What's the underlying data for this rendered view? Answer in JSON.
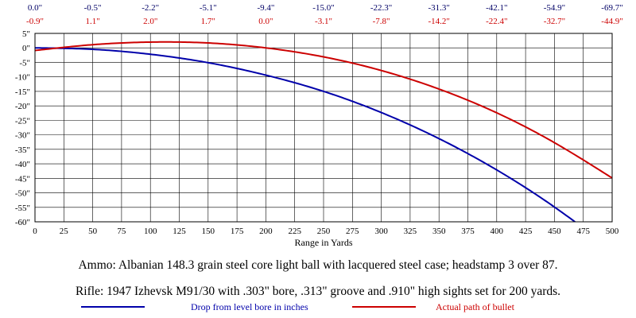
{
  "chart_data": {
    "type": "line",
    "xlabel": "Range in Yards",
    "ylabel": "",
    "xlim": [
      0,
      500
    ],
    "ylim": [
      -60,
      5
    ],
    "x_ticks": [
      0,
      25,
      50,
      75,
      100,
      125,
      150,
      175,
      200,
      225,
      250,
      275,
      300,
      325,
      350,
      375,
      400,
      425,
      450,
      475,
      500
    ],
    "y_ticks": [
      5,
      0,
      -5,
      -10,
      -15,
      -20,
      -25,
      -30,
      -35,
      -40,
      -45,
      -50,
      -55,
      -60
    ],
    "y_tick_labels": [
      "5\"",
      "0\"",
      "-5\"",
      "-10\"",
      "-15\"",
      "-20\"",
      "-25\"",
      "-30\"",
      "-35\"",
      "-40\"",
      "-45\"",
      "-50\"",
      "-55\"",
      "-60\""
    ],
    "grid": true,
    "top_labels": {
      "x": [
        0,
        50,
        100,
        150,
        200,
        250,
        300,
        350,
        400,
        450,
        500
      ],
      "drop": [
        "0.0\"",
        "-0.5\"",
        "-2.2\"",
        "-5.1\"",
        "-9.4\"",
        "-15.0\"",
        "-22.3\"",
        "-31.3\"",
        "-42.1\"",
        "-54.9\"",
        "-69.7\""
      ],
      "path": [
        "-0.9\"",
        "1.1\"",
        "2.0\"",
        "1.7\"",
        "0.0\"",
        "-3.1\"",
        "-7.8\"",
        "-14.2\"",
        "-22.4\"",
        "-32.7\"",
        "-44.9\""
      ]
    },
    "series": [
      {
        "name": "Drop from level bore in inches",
        "color": "#0000aa",
        "x": [
          0,
          50,
          100,
          150,
          200,
          250,
          300,
          350,
          400,
          450,
          500
        ],
        "values": [
          0.0,
          -0.5,
          -2.2,
          -5.1,
          -9.4,
          -15.0,
          -22.3,
          -31.3,
          -42.1,
          -54.9,
          -69.7
        ]
      },
      {
        "name": "Actual path of bullet",
        "color": "#cc0000",
        "x": [
          0,
          50,
          100,
          150,
          200,
          250,
          300,
          350,
          400,
          450,
          500
        ],
        "values": [
          -0.9,
          1.1,
          2.0,
          1.7,
          0.0,
          -3.1,
          -7.8,
          -14.2,
          -22.4,
          -32.7,
          -44.9
        ]
      }
    ]
  },
  "notes": {
    "ammo": "Ammo:  Albanian 148.3 grain steel core light ball with lacquered steel case; headstamp 3 over 87.",
    "rifle": "Rifle:  1947 Izhevsk M91/30 with .303\" bore, .313\" groove and .910\" high sights set for 200 yards."
  }
}
